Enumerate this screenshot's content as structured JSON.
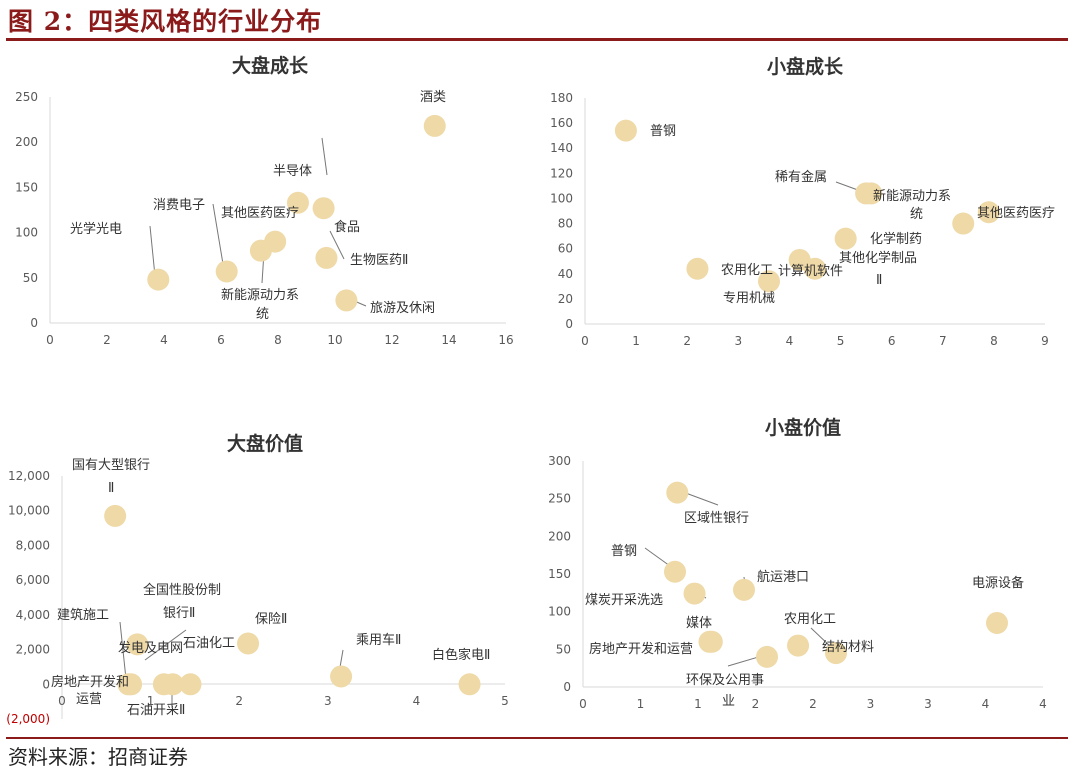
{
  "figure_title": "图 2：四类风格的行业分布",
  "source": "资料来源：招商证券",
  "colors": {
    "accent": "#8B1A1A",
    "marker": "#EED9A7",
    "axis": "#D9D9D9",
    "tick_text": "#595959",
    "negative_tick": "#C00000"
  },
  "chart_data": [
    {
      "type": "scatter",
      "title": "大盘成长",
      "xlim": [
        0,
        16
      ],
      "ylim": [
        0,
        250
      ],
      "xticks": [
        "0",
        "2",
        "4",
        "6",
        "8",
        "10",
        "12",
        "14",
        "16"
      ],
      "yticks": [
        "0",
        "50",
        "100",
        "150",
        "200",
        "250"
      ],
      "points": [
        {
          "label": "酒类",
          "x": 13.5,
          "y": 218
        },
        {
          "label": "光学光电",
          "x": 3.8,
          "y": 48
        },
        {
          "label": "消费电子",
          "x": 6.2,
          "y": 57
        },
        {
          "label": "新能源动力系统",
          "x": 7.4,
          "y": 80
        },
        {
          "label": "其他医药医疗",
          "x": 7.9,
          "y": 90
        },
        {
          "label": "半导体",
          "x": 8.7,
          "y": 133
        },
        {
          "label": "食品",
          "x": 9.6,
          "y": 127
        },
        {
          "label": "生物医药Ⅱ",
          "x": 9.7,
          "y": 72
        },
        {
          "label": "旅游及休闲",
          "x": 10.4,
          "y": 25
        }
      ]
    },
    {
      "type": "scatter",
      "title": "小盘成长",
      "xlim": [
        0,
        9
      ],
      "ylim": [
        0,
        180
      ],
      "xticks": [
        "0",
        "1",
        "2",
        "3",
        "4",
        "5",
        "6",
        "7",
        "8",
        "9"
      ],
      "yticks": [
        "0",
        "20",
        "40",
        "60",
        "80",
        "100",
        "120",
        "140",
        "160",
        "180"
      ],
      "points": [
        {
          "label": "普钢",
          "x": 0.8,
          "y": 154
        },
        {
          "label": "稀有金属",
          "x": 5.5,
          "y": 104
        },
        {
          "label": "新能源动力系统",
          "x": 5.6,
          "y": 104
        },
        {
          "label": "其他医药医疗",
          "x": 7.9,
          "y": 89
        },
        {
          "label": "其他医药医疗",
          "x": 7.4,
          "y": 80
        },
        {
          "label": "化学制药",
          "x": 5.1,
          "y": 68
        },
        {
          "label": "其他化学制品Ⅱ",
          "x": 4.5,
          "y": 44
        },
        {
          "label": "农用化工",
          "x": 2.2,
          "y": 44
        },
        {
          "label": "计算机软件",
          "x": 4.2,
          "y": 51
        },
        {
          "label": "专用机械",
          "x": 3.6,
          "y": 34
        }
      ]
    },
    {
      "type": "scatter",
      "title": "大盘价值",
      "xlim": [
        0,
        5
      ],
      "ylim": [
        -2000,
        12000
      ],
      "xticks": [
        "0",
        "1",
        "2",
        "3",
        "4",
        "5"
      ],
      "yticks": [
        "(2,000)",
        "0",
        "2,000",
        "4,000",
        "6,000",
        "8,000",
        "10,000",
        "12,000"
      ],
      "points": [
        {
          "label": "国有大型银行Ⅱ",
          "x": 0.6,
          "y": 9700
        },
        {
          "label": "全国性股份制银行Ⅱ",
          "x": 0.85,
          "y": 2300
        },
        {
          "label": "建筑施工",
          "x": 0.75,
          "y": 0
        },
        {
          "label": "房地产开发和运营",
          "x": 0.78,
          "y": 0
        },
        {
          "label": "发电及电网",
          "x": 1.15,
          "y": 0
        },
        {
          "label": "石油开采Ⅱ",
          "x": 1.25,
          "y": 0
        },
        {
          "label": "石油化工",
          "x": 1.45,
          "y": 0
        },
        {
          "label": "保险Ⅱ",
          "x": 2.1,
          "y": 2350
        },
        {
          "label": "乘用车Ⅱ",
          "x": 3.15,
          "y": 450
        },
        {
          "label": "白色家电Ⅱ",
          "x": 4.6,
          "y": 0
        }
      ]
    },
    {
      "type": "scatter",
      "title": "小盘价值",
      "xlim": [
        0,
        4
      ],
      "ylim": [
        0,
        300
      ],
      "xticks": [
        "0",
        "1",
        "1",
        "2",
        "2",
        "3",
        "3",
        "4",
        "4"
      ],
      "yticks": [
        "0",
        "50",
        "100",
        "150",
        "200",
        "250",
        "300"
      ],
      "points": [
        {
          "label": "区域性银行",
          "x": 0.82,
          "y": 258
        },
        {
          "label": "普钢",
          "x": 0.8,
          "y": 153
        },
        {
          "label": "煤炭开采洗选",
          "x": 0.97,
          "y": 124
        },
        {
          "label": "航运港口",
          "x": 1.4,
          "y": 129
        },
        {
          "label": "媒体",
          "x": 1.1,
          "y": 60
        },
        {
          "label": "房地产开发和运营",
          "x": 1.12,
          "y": 60
        },
        {
          "label": "环保及公用事业",
          "x": 1.6,
          "y": 40
        },
        {
          "label": "农用化工",
          "x": 1.87,
          "y": 55
        },
        {
          "label": "结构材料",
          "x": 2.2,
          "y": 45
        },
        {
          "label": "电源设备",
          "x": 3.6,
          "y": 85
        }
      ]
    }
  ],
  "labels": {
    "c0": [
      "酒类",
      "光学光电",
      "消费电子",
      "其他医药医疗",
      "半导体",
      "食品",
      "生物医药Ⅱ",
      "旅游及休闲",
      "新能源动力系",
      "统"
    ],
    "c1": [
      "普钢",
      "稀有金属",
      "新能源动力系",
      "统",
      "其他医药医疗",
      "化学制药",
      "其他化学制品",
      "Ⅱ",
      "农用化工",
      "计算机软件",
      "专用机械"
    ],
    "c2": [
      "国有大型银行",
      "Ⅱ",
      "全国性股份制",
      "银行Ⅱ",
      "建筑施工",
      "保险Ⅱ",
      "发电及电网",
      "石油化工",
      "房地产开发和",
      "运营",
      "石油开采Ⅱ",
      "乘用车Ⅱ",
      "白色家电Ⅱ"
    ],
    "c3": [
      "区域性银行",
      "普钢",
      "航运港口",
      "煤炭开采洗选",
      "媒体",
      "电源设备",
      "农用化工",
      "房地产开发和运营",
      "结构材料",
      "环保及公用事",
      "业"
    ]
  }
}
